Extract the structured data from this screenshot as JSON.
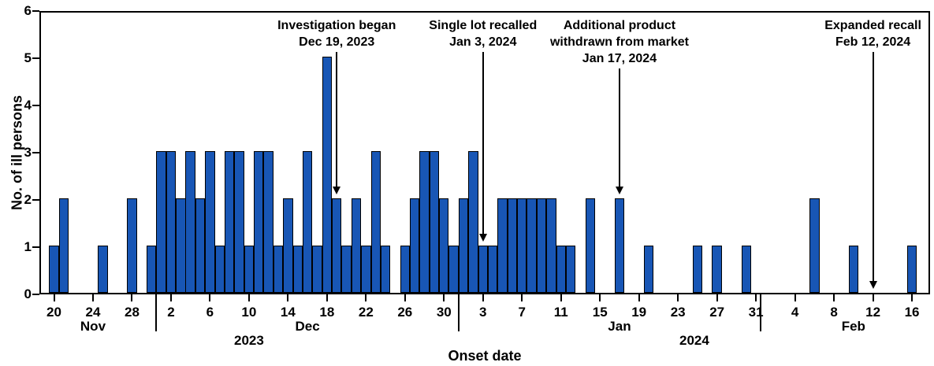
{
  "chart_data": {
    "type": "bar",
    "title": "",
    "xlabel": "Onset date",
    "ylabel": "No. of ill persons",
    "ylim": [
      0,
      6
    ],
    "yticks": [
      0,
      1,
      2,
      3,
      4,
      5,
      6
    ],
    "bar_color": "#1856b5",
    "bar_outline_color": "#000000",
    "axis_color": "#000000",
    "categories": [
      "Nov 20",
      "Nov 21",
      "Nov 22",
      "Nov 23",
      "Nov 24",
      "Nov 25",
      "Nov 26",
      "Nov 27",
      "Nov 28",
      "Nov 29",
      "Nov 30",
      "Dec 1",
      "Dec 2",
      "Dec 3",
      "Dec 4",
      "Dec 5",
      "Dec 6",
      "Dec 7",
      "Dec 8",
      "Dec 9",
      "Dec 10",
      "Dec 11",
      "Dec 12",
      "Dec 13",
      "Dec 14",
      "Dec 15",
      "Dec 16",
      "Dec 17",
      "Dec 18",
      "Dec 19",
      "Dec 20",
      "Dec 21",
      "Dec 22",
      "Dec 23",
      "Dec 24",
      "Dec 25",
      "Dec 26",
      "Dec 27",
      "Dec 28",
      "Dec 29",
      "Dec 30",
      "Dec 31",
      "Jan 1",
      "Jan 2",
      "Jan 3",
      "Jan 4",
      "Jan 5",
      "Jan 6",
      "Jan 7",
      "Jan 8",
      "Jan 9",
      "Jan 10",
      "Jan 11",
      "Jan 12",
      "Jan 13",
      "Jan 14",
      "Jan 15",
      "Jan 16",
      "Jan 17",
      "Jan 18",
      "Jan 19",
      "Jan 20",
      "Jan 21",
      "Jan 22",
      "Jan 23",
      "Jan 24",
      "Jan 25",
      "Jan 26",
      "Jan 27",
      "Jan 28",
      "Jan 29",
      "Jan 30",
      "Jan 31",
      "Feb 1",
      "Feb 2",
      "Feb 3",
      "Feb 4",
      "Feb 5",
      "Feb 6",
      "Feb 7",
      "Feb 8",
      "Feb 9",
      "Feb 10",
      "Feb 11",
      "Feb 12",
      "Feb 13",
      "Feb 14",
      "Feb 15",
      "Feb 16"
    ],
    "values": [
      1,
      2,
      0,
      0,
      0,
      1,
      0,
      0,
      2,
      0,
      1,
      3,
      3,
      2,
      3,
      2,
      3,
      1,
      3,
      3,
      1,
      3,
      3,
      1,
      2,
      1,
      3,
      1,
      5,
      2,
      1,
      2,
      1,
      3,
      1,
      0,
      1,
      2,
      3,
      3,
      2,
      1,
      2,
      3,
      1,
      1,
      2,
      2,
      2,
      2,
      2,
      2,
      1,
      1,
      0,
      2,
      0,
      0,
      2,
      0,
      0,
      1,
      0,
      0,
      0,
      0,
      1,
      0,
      1,
      0,
      0,
      1,
      0,
      0,
      0,
      0,
      0,
      0,
      2,
      0,
      0,
      0,
      1,
      0,
      0,
      0,
      0,
      0,
      1
    ],
    "xticks": [
      {
        "index": 0,
        "label": "20"
      },
      {
        "index": 4,
        "label": "24"
      },
      {
        "index": 8,
        "label": "28"
      },
      {
        "index": 12,
        "label": "2"
      },
      {
        "index": 16,
        "label": "6"
      },
      {
        "index": 20,
        "label": "10"
      },
      {
        "index": 24,
        "label": "14"
      },
      {
        "index": 28,
        "label": "18"
      },
      {
        "index": 32,
        "label": "22"
      },
      {
        "index": 36,
        "label": "26"
      },
      {
        "index": 40,
        "label": "30"
      },
      {
        "index": 44,
        "label": "3"
      },
      {
        "index": 48,
        "label": "7"
      },
      {
        "index": 52,
        "label": "11"
      },
      {
        "index": 56,
        "label": "15"
      },
      {
        "index": 60,
        "label": "19"
      },
      {
        "index": 64,
        "label": "23"
      },
      {
        "index": 68,
        "label": "27"
      },
      {
        "index": 72,
        "label": "31"
      },
      {
        "index": 76,
        "label": "4"
      },
      {
        "index": 80,
        "label": "8"
      },
      {
        "index": 84,
        "label": "12"
      },
      {
        "index": 88,
        "label": "16"
      }
    ],
    "months": [
      {
        "label": "Nov",
        "center_index": 4
      },
      {
        "label": "Dec",
        "center_index": 26
      },
      {
        "label": "Jan",
        "center_index": 58
      },
      {
        "label": "Feb",
        "center_index": 82
      }
    ],
    "month_separators_after_index": [
      10,
      41,
      72
    ],
    "years": [
      {
        "label": "2023"
      },
      {
        "label": "2024"
      }
    ],
    "annotations": [
      {
        "lines": [
          "Investigation began",
          "Dec 19, 2023"
        ],
        "target_index": 29,
        "target_count": 2
      },
      {
        "lines": [
          "Single lot recalled",
          "Jan 3, 2024"
        ],
        "target_index": 44,
        "target_count": 1
      },
      {
        "lines": [
          "Additional product",
          "withdrawn from market",
          "Jan 17, 2024"
        ],
        "target_index": 58,
        "target_count": 2
      },
      {
        "lines": [
          "Expanded recall",
          "Feb 12, 2024"
        ],
        "target_index": 84,
        "target_count": 0
      }
    ]
  }
}
